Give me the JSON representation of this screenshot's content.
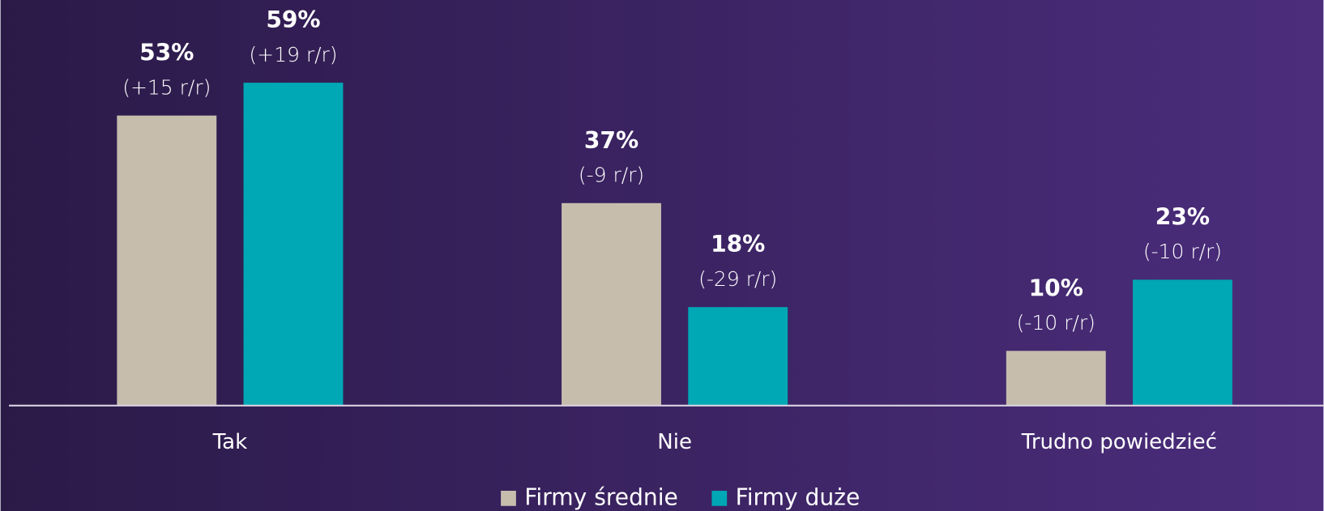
{
  "chart_data": {
    "type": "bar",
    "categories": [
      "Tak",
      "Nie",
      "Trudno powiedzieć"
    ],
    "series": [
      {
        "name": "Firmy średnie",
        "color": "#c6bdad",
        "values": [
          53,
          37,
          10
        ],
        "value_labels": [
          "53%",
          "37%",
          "10%"
        ],
        "change_labels": [
          "(+15 r/r)",
          "(-9 r/r)",
          "(-10 r/r)"
        ]
      },
      {
        "name": "Firmy duże",
        "color": "#00a7b5",
        "values": [
          59,
          18,
          23
        ],
        "value_labels": [
          "59%",
          "18%",
          "23%"
        ],
        "change_labels": [
          "(+19 r/r)",
          "(-29 r/r)",
          "(-10 r/r)"
        ]
      }
    ],
    "legend": "bottom"
  }
}
